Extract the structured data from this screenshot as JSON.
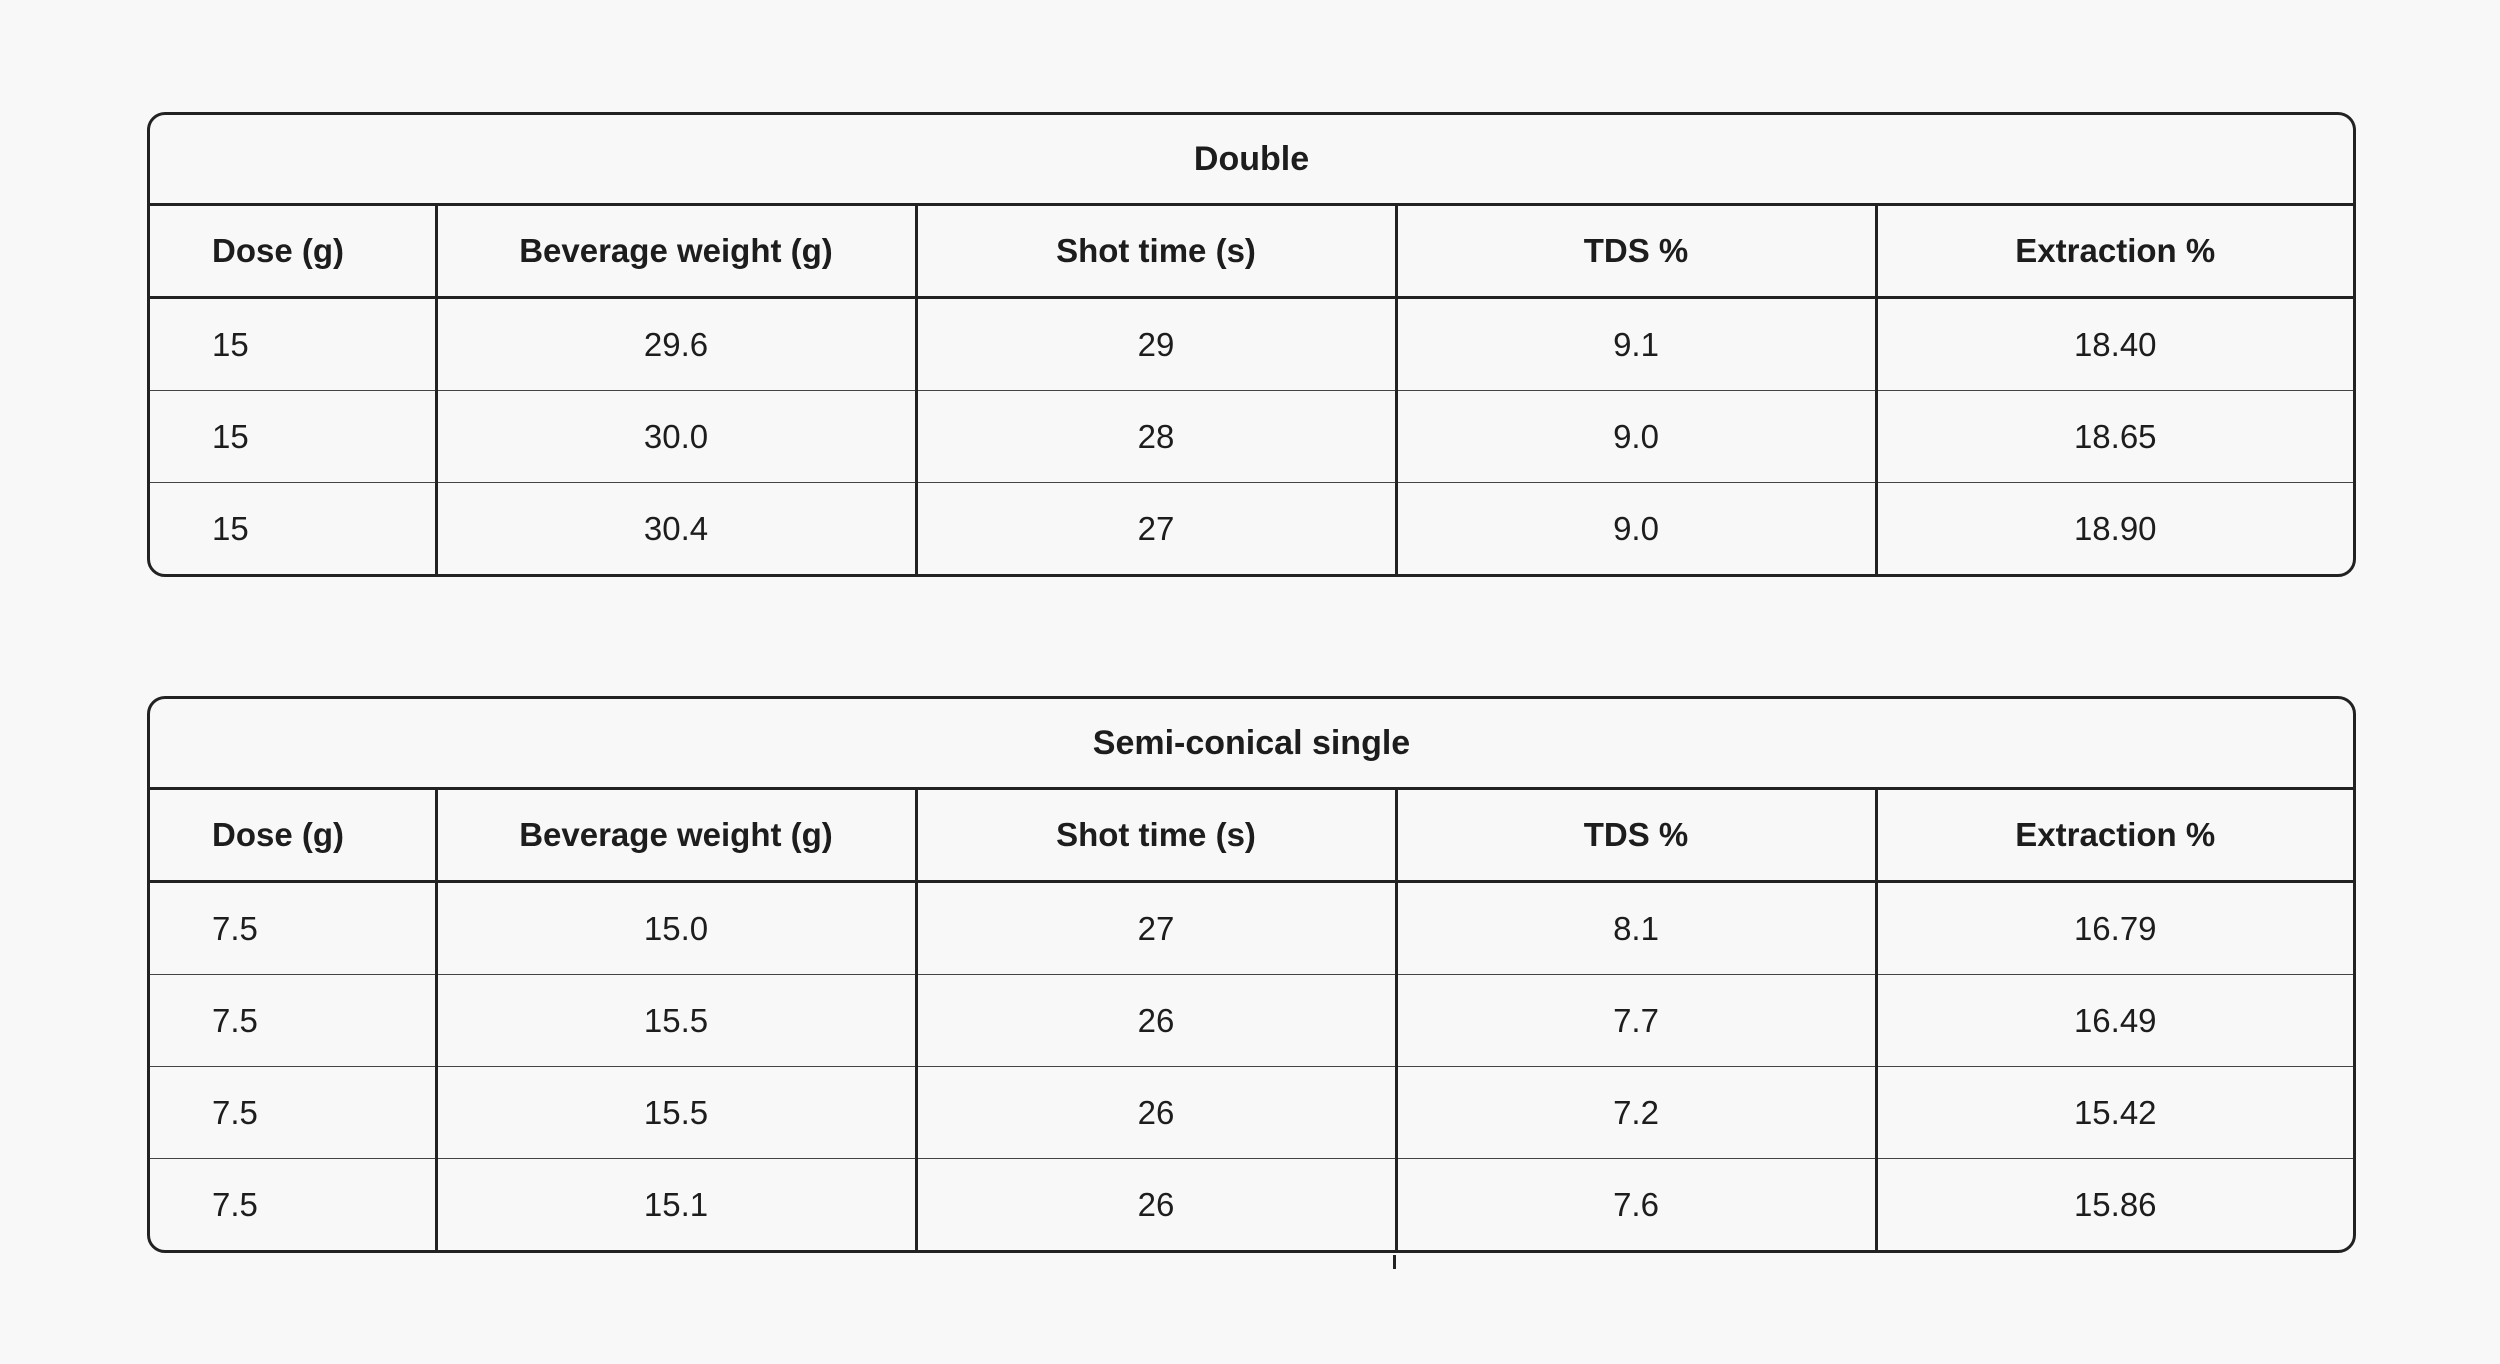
{
  "columns": [
    "Dose (g)",
    "Beverage weight (g)",
    "Shot time (s)",
    "TDS %",
    "Extraction %"
  ],
  "tables": [
    {
      "title": "Double",
      "rows": [
        [
          "15",
          "29.6",
          "29",
          "9.1",
          "18.40"
        ],
        [
          "15",
          "30.0",
          "28",
          "9.0",
          "18.65"
        ],
        [
          "15",
          "30.4",
          "27",
          "9.0",
          "18.90"
        ]
      ]
    },
    {
      "title": "Semi-conical single",
      "rows": [
        [
          "7.5",
          "15.0",
          "27",
          "8.1",
          "16.79"
        ],
        [
          "7.5",
          "15.5",
          "26",
          "7.7",
          "16.49"
        ],
        [
          "7.5",
          "15.5",
          "26",
          "7.2",
          "15.42"
        ],
        [
          "7.5",
          "15.1",
          "26",
          "7.6",
          "15.86"
        ]
      ]
    }
  ]
}
